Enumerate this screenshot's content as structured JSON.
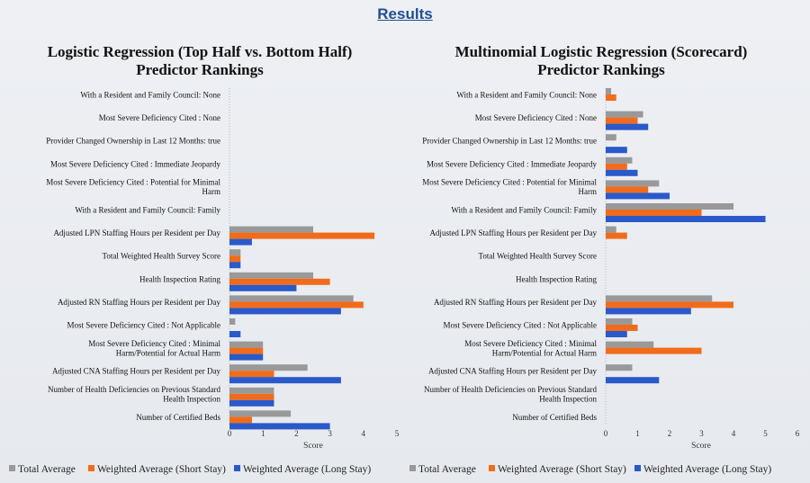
{
  "page_title": "Results",
  "colors": {
    "total": "#999999",
    "short": "#f26b1a",
    "long": "#2a59c9"
  },
  "legend": [
    {
      "name": "Total Average",
      "color": "#999999"
    },
    {
      "name": "Weighted Average (Short Stay)",
      "color": "#f26b1a"
    },
    {
      "name": "Weighted Average (Long Stay)",
      "color": "#2a59c9"
    }
  ],
  "chart_data": [
    {
      "type": "bar",
      "orientation": "horizontal",
      "title": [
        "Logistic Regression (Top Half vs. Bottom Half)",
        "Predictor Rankings"
      ],
      "xlabel": "Score",
      "xlim": [
        0,
        5
      ],
      "xticks": [
        0,
        1,
        2,
        3,
        4,
        5
      ],
      "categories": [
        [
          "With a Resident and Family Council: None"
        ],
        [
          "Most Severe Deficiency Cited : None"
        ],
        [
          "Provider Changed Ownership in Last 12 Months: true"
        ],
        [
          "Most Severe Deficiency Cited : Immediate Jeopardy"
        ],
        [
          "Most Severe Deficiency Cited : Potential for Minimal",
          "Harm"
        ],
        [
          "With a Resident and Family Council: Family"
        ],
        [
          "Adjusted LPN Staffing Hours per Resident per Day"
        ],
        [
          "Total Weighted Health Survey Score"
        ],
        [
          "Health Inspection Rating"
        ],
        [
          "Adjusted RN Staffing Hours per Resident per Day"
        ],
        [
          "Most Severe Deficiency Cited : Not Applicable"
        ],
        [
          "Most Severe Deficiency Cited : Minimal",
          "Harm/Potential for Actual Harm"
        ],
        [
          "Adjusted CNA Staffing Hours per Resident per Day"
        ],
        [
          "Number of Health Deficiencies on Previous Standard",
          "Health Inspection"
        ],
        [
          "Number of Certified Beds"
        ]
      ],
      "series": [
        {
          "name": "Total Average",
          "values": [
            0,
            0,
            0,
            0,
            0,
            0,
            2.5,
            0.33,
            2.5,
            3.7,
            0.17,
            1.0,
            2.33,
            1.33,
            1.83
          ]
        },
        {
          "name": "Weighted Average (Short Stay)",
          "values": [
            0,
            0,
            0,
            0,
            0,
            0,
            4.33,
            0.33,
            3.0,
            4.0,
            0,
            1.0,
            1.33,
            1.33,
            0.67
          ]
        },
        {
          "name": "Weighted Average (Long Stay)",
          "values": [
            0,
            0,
            0,
            0,
            0,
            0,
            0.67,
            0.33,
            2.0,
            3.33,
            0.33,
            1.0,
            3.33,
            1.33,
            3.0
          ]
        }
      ]
    },
    {
      "type": "bar",
      "orientation": "horizontal",
      "title": [
        "Multinomial Logistic Regression (Scorecard)",
        "Predictor Rankings"
      ],
      "xlabel": "Score",
      "xlim": [
        0,
        6
      ],
      "xticks": [
        0,
        1,
        2,
        3,
        4,
        5,
        6
      ],
      "categories": [
        [
          "With a Resident and Family Council: None"
        ],
        [
          "Most Severe Deficiency Cited : None"
        ],
        [
          "Provider Changed Ownership in Last 12 Months: true"
        ],
        [
          "Most Severe Deficiency Cited : Immediate Jeopardy"
        ],
        [
          "Most Severe Deficiency Cited : Potential for Minimal",
          "Harm"
        ],
        [
          "With a Resident and Family Council: Family"
        ],
        [
          "Adjusted LPN Staffing Hours per Resident per Day"
        ],
        [
          "Total Weighted Health Survey Score"
        ],
        [
          "Health Inspection Rating"
        ],
        [
          "Adjusted RN Staffing Hours per Resident per Day"
        ],
        [
          "Most Severe Deficiency Cited : Not Applicable"
        ],
        [
          "Most Severe Deficiency Cited : Minimal",
          "Harm/Potential for Actual Harm"
        ],
        [
          "Adjusted CNA Staffing Hours per Resident per Day"
        ],
        [
          "Number of Health Deficiencies on Previous Standard",
          "Health Inspection"
        ],
        [
          "Number of Certified Beds"
        ]
      ],
      "series": [
        {
          "name": "Total Average",
          "values": [
            0.17,
            1.17,
            0.33,
            0.83,
            1.67,
            4.0,
            0.33,
            0,
            0,
            3.33,
            0.83,
            1.5,
            0.83,
            0,
            0
          ]
        },
        {
          "name": "Weighted Average (Short Stay)",
          "values": [
            0.33,
            1.0,
            0,
            0.67,
            1.33,
            3.0,
            0.67,
            0,
            0,
            4.0,
            1.0,
            3.0,
            0,
            0,
            0
          ]
        },
        {
          "name": "Weighted Average (Long Stay)",
          "values": [
            0,
            1.33,
            0.67,
            1.0,
            2.0,
            5.0,
            0,
            0,
            0,
            2.67,
            0.67,
            0,
            1.67,
            0,
            0
          ]
        }
      ]
    }
  ]
}
